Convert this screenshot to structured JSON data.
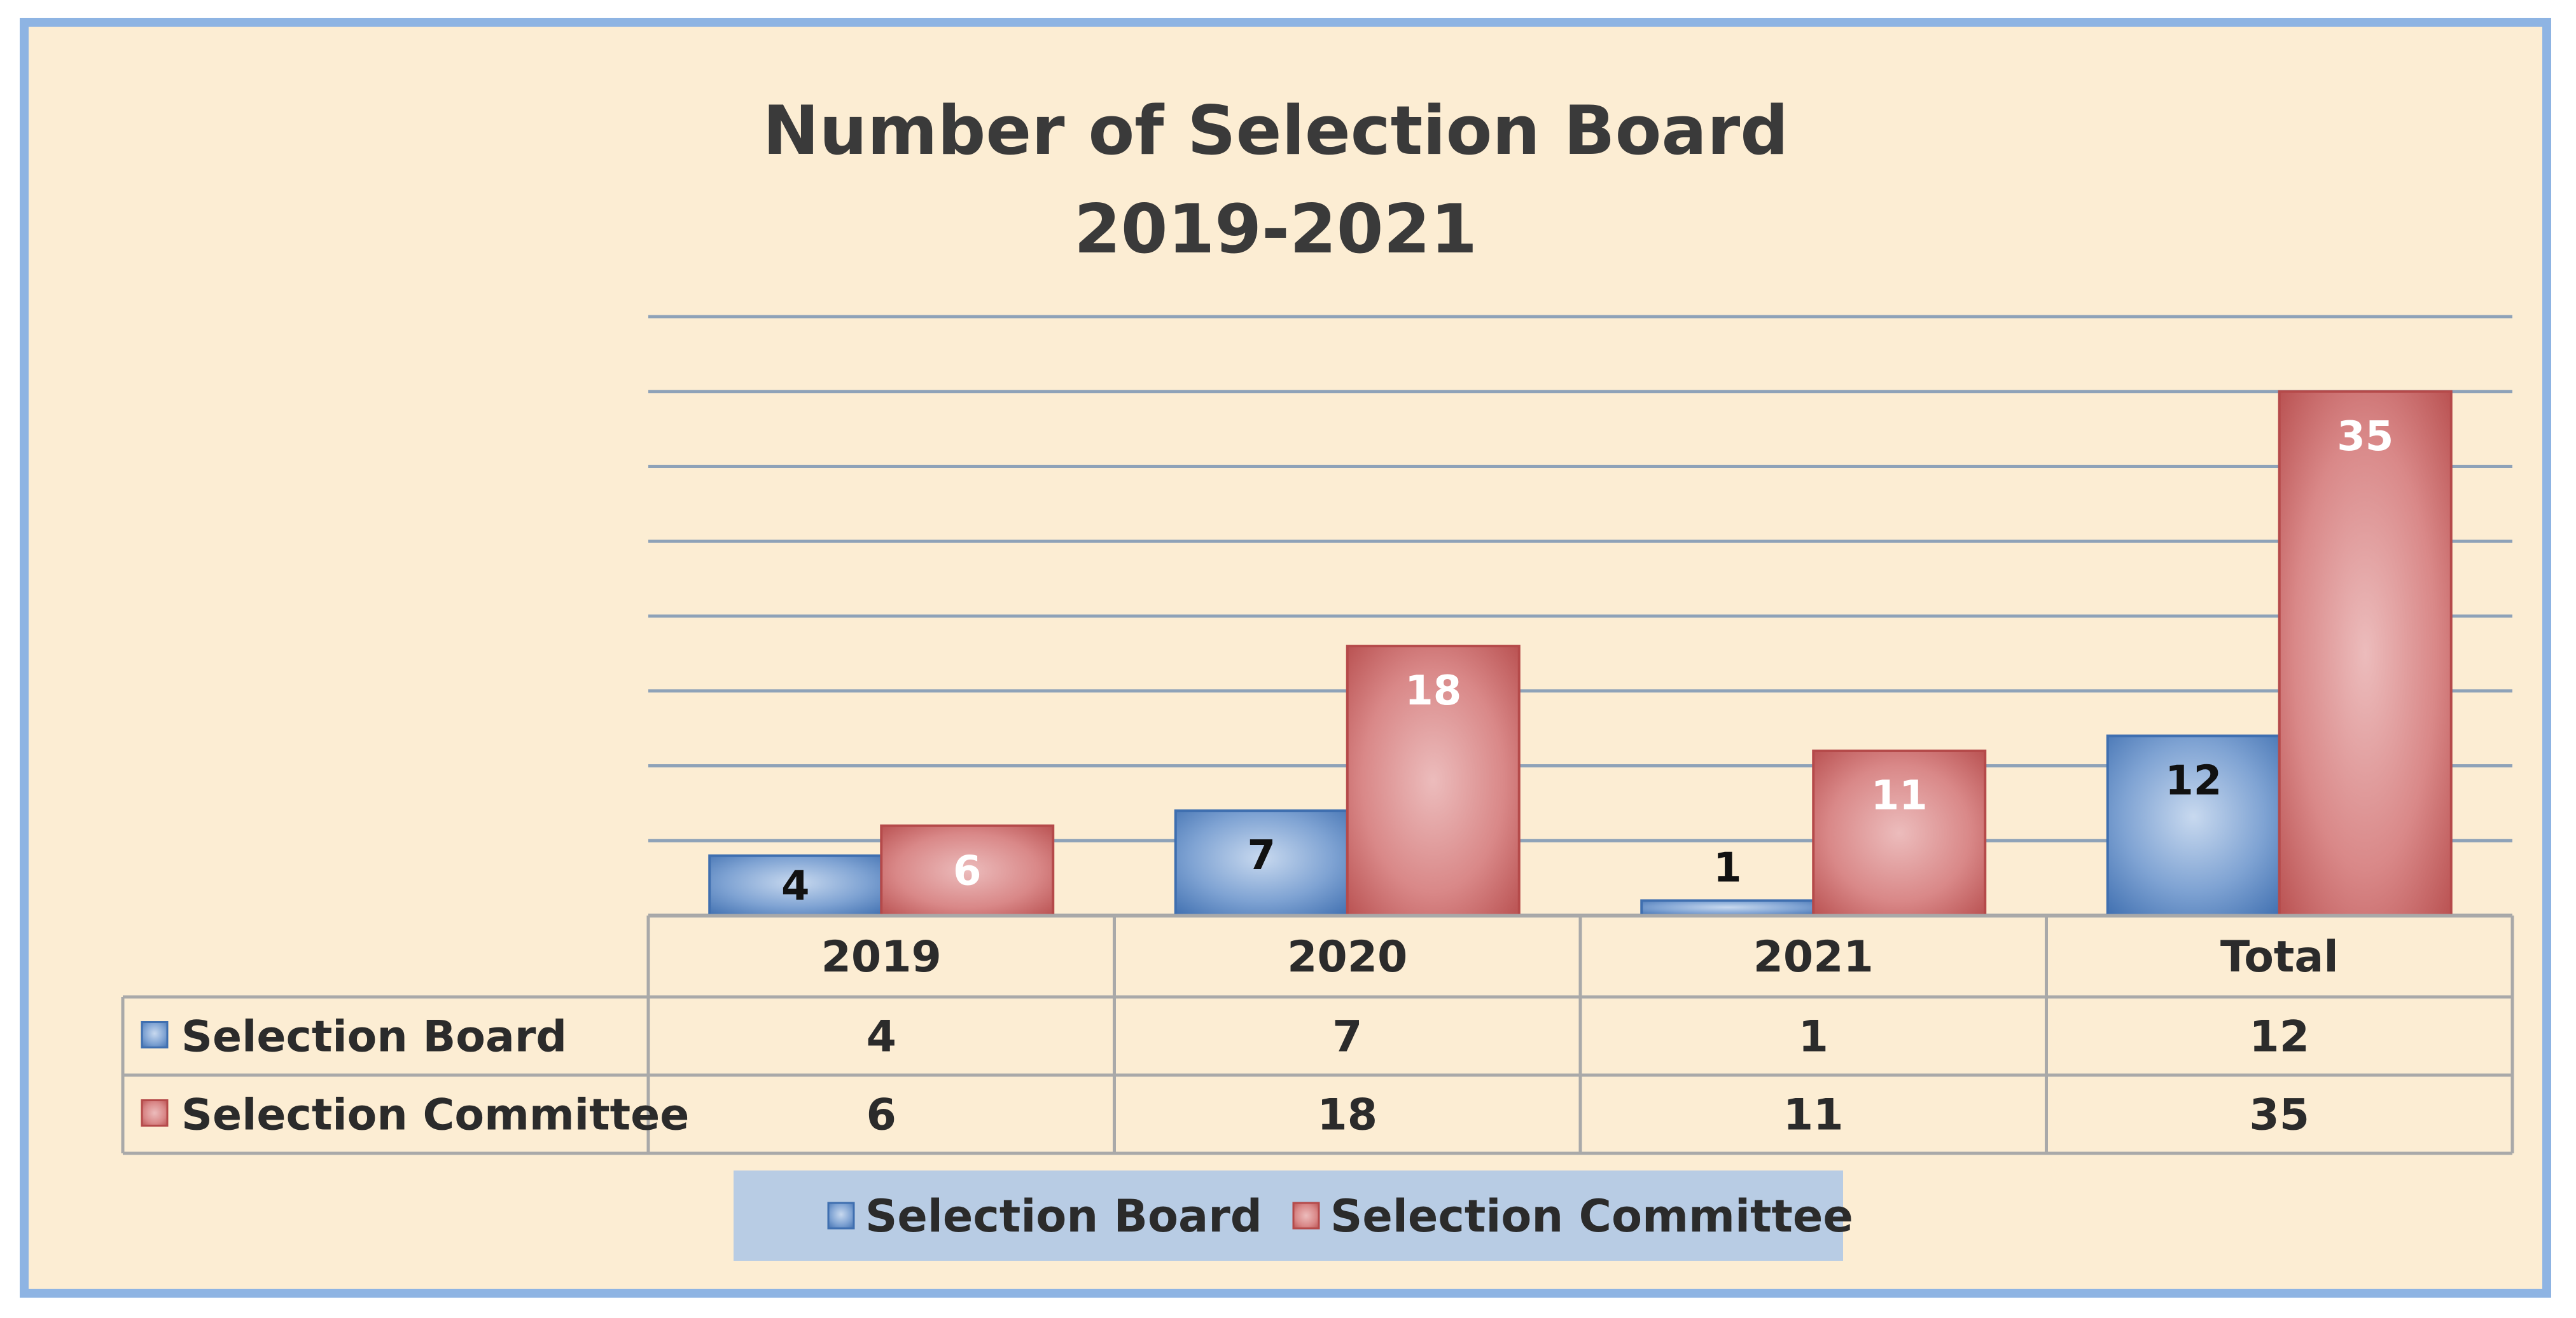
{
  "chart_data": {
    "type": "bar",
    "title": "Number of Selection Board",
    "subtitle": "2019-2021",
    "categories": [
      "2019",
      "2020",
      "2021",
      "Total"
    ],
    "series": [
      {
        "name": "Selection Board",
        "values": [
          4,
          7,
          1,
          12
        ],
        "color": "#4f81bd"
      },
      {
        "name": "Selection Committee",
        "values": [
          6,
          18,
          11,
          35
        ],
        "color": "#c0504d"
      }
    ],
    "ylim": [
      0,
      40
    ],
    "y_gridline_step": 5,
    "grid": true,
    "data_labels": true,
    "data_table": true,
    "legend_position": "bottom",
    "background_color": "#fcedd3",
    "border_color": "#8eb4e3",
    "legend_background": "#b8cce4",
    "gridline_color": "#8ea2b8"
  }
}
